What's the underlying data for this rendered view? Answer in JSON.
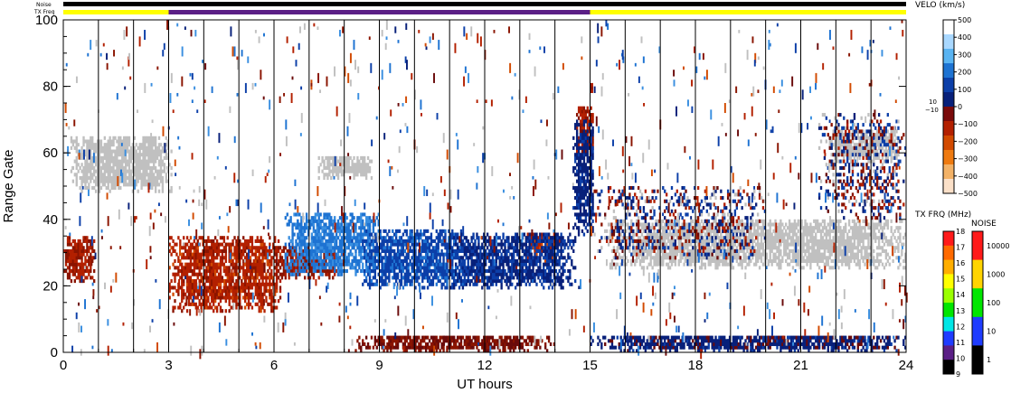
{
  "chart_data": {
    "type": "heatmap",
    "xlabel": "UT hours",
    "ylabel": "Range Gate",
    "xlim": [
      0,
      24
    ],
    "ylim": [
      0,
      100
    ],
    "x_ticks": [
      0,
      3,
      6,
      9,
      12,
      15,
      18,
      21,
      24
    ],
    "y_ticks": [
      0,
      20,
      40,
      60,
      80,
      100
    ],
    "vertical_lines_every_hours": 1,
    "header_bars": {
      "noise_label": "Noise",
      "txfreq_label": "TX Freq",
      "noise_color": "#000000",
      "txfreq_segments": [
        {
          "start": 0,
          "end": 3,
          "color": "#ffff00"
        },
        {
          "start": 3,
          "end": 15,
          "color": "#5b1f86"
        },
        {
          "start": 15,
          "end": 24,
          "color": "#ffff00"
        }
      ]
    },
    "velocity_scale": {
      "title": "VELO (km/s)",
      "ticks": [
        "500",
        "400",
        "300",
        "200",
        "100",
        "0",
        "−100",
        "−200",
        "−300",
        "−400",
        "−500"
      ],
      "small_ticks": [
        "10",
        "−10"
      ],
      "colors": [
        "#ffffff",
        "#a9d8ff",
        "#5ab4f2",
        "#1e73d2",
        "#0c3fa8",
        "#08207a",
        "#7a0a0a",
        "#b32000",
        "#d24a00",
        "#ee7a10",
        "#f3b267",
        "#fbe0c8"
      ]
    },
    "txfreq_scale": {
      "title": "TX FRQ (MHz)",
      "ticks": [
        "18",
        "17",
        "16",
        "15",
        "14",
        "13",
        "12",
        "11",
        "10",
        "9"
      ],
      "colors": [
        "#ff1a1a",
        "#ff6a00",
        "#ffae00",
        "#ffff00",
        "#9aff00",
        "#00e600",
        "#00e6e6",
        "#1f3cff",
        "#5b1f86",
        "#000000"
      ]
    },
    "noise_scale": {
      "title": "NOISE",
      "ticks": [
        "10000",
        "1000",
        "100",
        "10",
        "1"
      ],
      "colors": [
        "#ff1a1a",
        "#ffd400",
        "#00e600",
        "#1f3cff",
        "#000000"
      ]
    },
    "ground_scatter_color": "#c0c0c0",
    "regions": [
      {
        "kind": "ground",
        "t0": 0.2,
        "t1": 3.1,
        "g0": 48,
        "g1": 65
      },
      {
        "kind": "ground",
        "t0": 7.2,
        "t1": 8.8,
        "g0": 52,
        "g1": 59
      },
      {
        "kind": "ground",
        "t0": 15.5,
        "t1": 24.0,
        "g0": 25,
        "g1": 40
      },
      {
        "kind": "ground",
        "t0": 21.8,
        "t1": 23.8,
        "g0": 57,
        "g1": 67
      },
      {
        "kind": "neg",
        "t0": 0.0,
        "t1": 0.9,
        "g0": 21,
        "g1": 35,
        "vel": -180
      },
      {
        "kind": "neg",
        "t0": 3.0,
        "t1": 6.2,
        "g0": 12,
        "g1": 35,
        "vel": -220
      },
      {
        "kind": "neg",
        "t0": 6.0,
        "t1": 8.0,
        "g0": 22,
        "g1": 32,
        "vel": -160
      },
      {
        "kind": "neg",
        "t0": 13.1,
        "t1": 14.2,
        "g0": 27,
        "g1": 36,
        "vel": -260
      },
      {
        "kind": "neg",
        "t0": 14.6,
        "t1": 15.1,
        "g0": 60,
        "g1": 74,
        "vel": -200
      },
      {
        "kind": "neg",
        "t0": 8.3,
        "t1": 14.0,
        "g0": 0,
        "g1": 5,
        "vel": -90
      },
      {
        "kind": "pos",
        "t0": 6.3,
        "t1": 9.0,
        "g0": 23,
        "g1": 42,
        "vel": 250
      },
      {
        "kind": "pos",
        "t0": 8.5,
        "t1": 11.5,
        "g0": 19,
        "g1": 37,
        "vel": 150
      },
      {
        "kind": "pos",
        "t0": 11.0,
        "t1": 14.6,
        "g0": 19,
        "g1": 36,
        "vel": 80
      },
      {
        "kind": "pos",
        "t0": 14.5,
        "t1": 15.1,
        "g0": 35,
        "g1": 70,
        "vel": 60
      },
      {
        "kind": "pos",
        "t0": 15.0,
        "t1": 24.0,
        "g0": 0,
        "g1": 5,
        "vel": 40
      },
      {
        "kind": "mixed",
        "t0": 15.1,
        "t1": 20.0,
        "g0": 28,
        "g1": 50,
        "vel": 0
      },
      {
        "kind": "mixed",
        "t0": 21.5,
        "t1": 24.0,
        "g0": 40,
        "g1": 72,
        "vel": 0
      }
    ]
  }
}
